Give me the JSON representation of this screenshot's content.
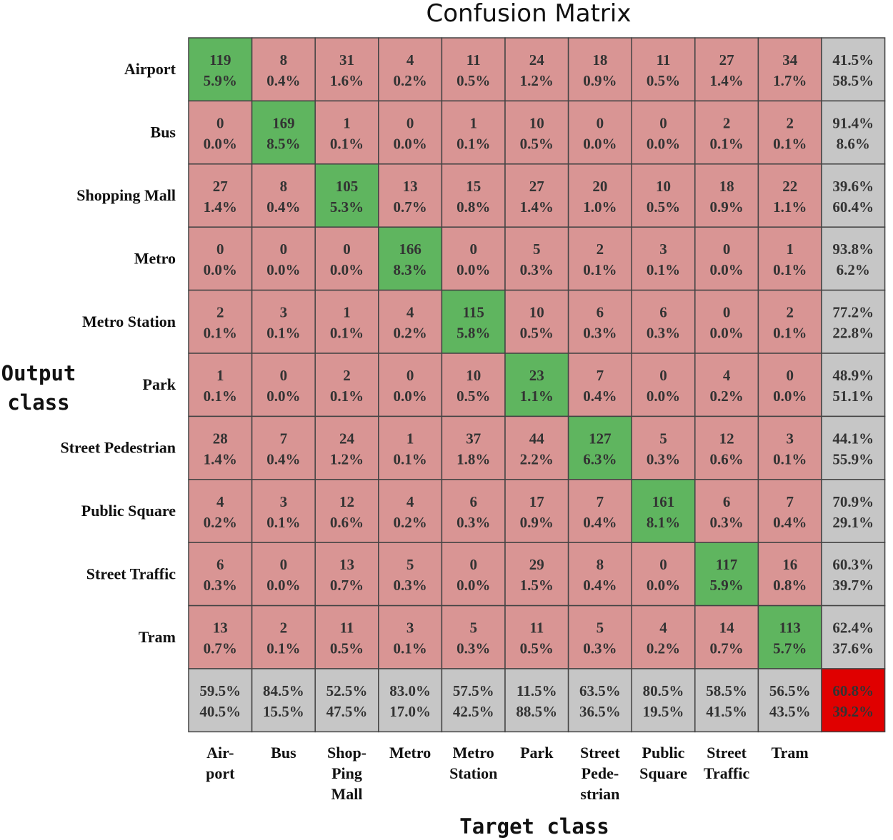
{
  "colors": {
    "correct": "#5fb55f",
    "incorrect": "#d99594",
    "summary": "#c6c6c6",
    "overall": "#e00000",
    "grid": "#444444"
  },
  "chart_data": {
    "type": "heatmap",
    "title": "Confusion Matrix",
    "xlabel": "Target class",
    "ylabel": [
      "Output",
      "class"
    ],
    "row_labels": [
      "Airport",
      "Bus",
      "Shopping Mall",
      "Metro",
      "Metro Station",
      "Park",
      "Street Pedestrian",
      "Public Square",
      "Street Traffic",
      "Tram"
    ],
    "col_labels": [
      [
        "Air-",
        "port"
      ],
      [
        "Bus"
      ],
      [
        "Shop-",
        "Ping",
        "Mall"
      ],
      [
        "Metro"
      ],
      [
        "Metro",
        "Station"
      ],
      [
        "Park"
      ],
      [
        "Street",
        "Pede-",
        "strian"
      ],
      [
        "Public",
        "Square"
      ],
      [
        "Street",
        "Traffic"
      ],
      [
        "Tram"
      ]
    ],
    "counts": [
      [
        119,
        8,
        31,
        4,
        11,
        24,
        18,
        11,
        27,
        34
      ],
      [
        0,
        169,
        1,
        0,
        1,
        10,
        0,
        0,
        2,
        2
      ],
      [
        27,
        8,
        105,
        13,
        15,
        27,
        20,
        10,
        18,
        22
      ],
      [
        0,
        0,
        0,
        166,
        0,
        5,
        2,
        3,
        0,
        1
      ],
      [
        2,
        3,
        1,
        4,
        115,
        10,
        6,
        6,
        0,
        2
      ],
      [
        1,
        0,
        2,
        0,
        10,
        23,
        7,
        0,
        4,
        0
      ],
      [
        28,
        7,
        24,
        1,
        37,
        44,
        127,
        5,
        12,
        3
      ],
      [
        4,
        3,
        12,
        4,
        6,
        17,
        7,
        161,
        6,
        7
      ],
      [
        6,
        0,
        13,
        5,
        0,
        29,
        8,
        0,
        117,
        16
      ],
      [
        13,
        2,
        11,
        3,
        5,
        11,
        5,
        4,
        14,
        113
      ]
    ],
    "percents": [
      [
        "5.9%",
        "0.4%",
        "1.6%",
        "0.2%",
        "0.5%",
        "1.2%",
        "0.9%",
        "0.5%",
        "1.4%",
        "1.7%"
      ],
      [
        "0.0%",
        "8.5%",
        "0.1%",
        "0.0%",
        "0.1%",
        "0.5%",
        "0.0%",
        "0.0%",
        "0.1%",
        "0.1%"
      ],
      [
        "1.4%",
        "0.4%",
        "5.3%",
        "0.7%",
        "0.8%",
        "1.4%",
        "1.0%",
        "0.5%",
        "0.9%",
        "1.1%"
      ],
      [
        "0.0%",
        "0.0%",
        "0.0%",
        "8.3%",
        "0.0%",
        "0.3%",
        "0.1%",
        "0.1%",
        "0.0%",
        "0.1%"
      ],
      [
        "0.1%",
        "0.1%",
        "0.1%",
        "0.2%",
        "5.8%",
        "0.5%",
        "0.3%",
        "0.3%",
        "0.0%",
        "0.1%"
      ],
      [
        "0.1%",
        "0.0%",
        "0.1%",
        "0.0%",
        "0.5%",
        "1.1%",
        "0.4%",
        "0.0%",
        "0.2%",
        "0.0%"
      ],
      [
        "1.4%",
        "0.4%",
        "1.2%",
        "0.1%",
        "1.8%",
        "2.2%",
        "6.3%",
        "0.3%",
        "0.6%",
        "0.1%"
      ],
      [
        "0.2%",
        "0.1%",
        "0.6%",
        "0.2%",
        "0.3%",
        "0.9%",
        "0.4%",
        "8.1%",
        "0.3%",
        "0.4%"
      ],
      [
        "0.3%",
        "0.0%",
        "0.7%",
        "0.3%",
        "0.0%",
        "1.5%",
        "0.4%",
        "0.0%",
        "5.9%",
        "0.8%"
      ],
      [
        "0.7%",
        "0.1%",
        "0.5%",
        "0.1%",
        "0.3%",
        "0.5%",
        "0.3%",
        "0.2%",
        "0.7%",
        "5.7%"
      ]
    ],
    "row_summary": [
      [
        "41.5%",
        "58.5%"
      ],
      [
        "91.4%",
        "8.6%"
      ],
      [
        "39.6%",
        "60.4%"
      ],
      [
        "93.8%",
        "6.2%"
      ],
      [
        "77.2%",
        "22.8%"
      ],
      [
        "48.9%",
        "51.1%"
      ],
      [
        "44.1%",
        "55.9%"
      ],
      [
        "70.9%",
        "29.1%"
      ],
      [
        "60.3%",
        "39.7%"
      ],
      [
        "62.4%",
        "37.6%"
      ]
    ],
    "col_summary": [
      [
        "59.5%",
        "40.5%"
      ],
      [
        "84.5%",
        "15.5%"
      ],
      [
        "52.5%",
        "47.5%"
      ],
      [
        "83.0%",
        "17.0%"
      ],
      [
        "57.5%",
        "42.5%"
      ],
      [
        "11.5%",
        "88.5%"
      ],
      [
        "63.5%",
        "36.5%"
      ],
      [
        "80.5%",
        "19.5%"
      ],
      [
        "58.5%",
        "41.5%"
      ],
      [
        "56.5%",
        "43.5%"
      ]
    ],
    "overall": [
      "60.8%",
      "39.2%"
    ]
  }
}
